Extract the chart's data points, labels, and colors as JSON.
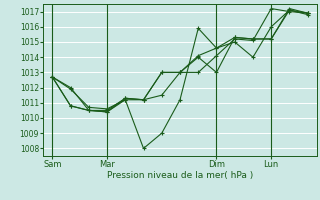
{
  "title": "",
  "xlabel": "Pression niveau de la mer( hPa )",
  "bg_color": "#cce8e4",
  "grid_color": "#ffffff",
  "line_color": "#1a5c1a",
  "ylim": [
    1007.5,
    1017.5
  ],
  "yticks": [
    1008,
    1009,
    1010,
    1011,
    1012,
    1013,
    1014,
    1015,
    1016,
    1017
  ],
  "xtick_labels": [
    "Sam",
    "Mar",
    "Dim",
    "Lun"
  ],
  "xtick_positions": [
    0,
    3,
    9,
    12
  ],
  "total_points": 15,
  "series": [
    [
      1012.7,
      1011.9,
      1010.7,
      1010.6,
      1011.2,
      1011.2,
      1011.5,
      1013.0,
      1013.0,
      1014.1,
      1015.2,
      1015.1,
      1017.2,
      1017.0,
      1016.9
    ],
    [
      1012.7,
      1012.0,
      1010.5,
      1010.4,
      1011.2,
      1008.0,
      1009.0,
      1011.2,
      1015.9,
      1014.6,
      1015.0,
      1014.0,
      1016.0,
      1017.1,
      1016.8
    ],
    [
      1012.7,
      1010.8,
      1010.5,
      1010.4,
      1011.3,
      1011.2,
      1013.0,
      1013.0,
      1014.0,
      1013.0,
      1015.3,
      1015.2,
      1015.2,
      1017.2,
      1016.9
    ],
    [
      1012.7,
      1010.8,
      1010.5,
      1010.5,
      1011.3,
      1011.2,
      1013.0,
      1013.0,
      1014.1,
      1014.6,
      1015.3,
      1015.2,
      1015.2,
      1017.1,
      1016.9
    ]
  ]
}
